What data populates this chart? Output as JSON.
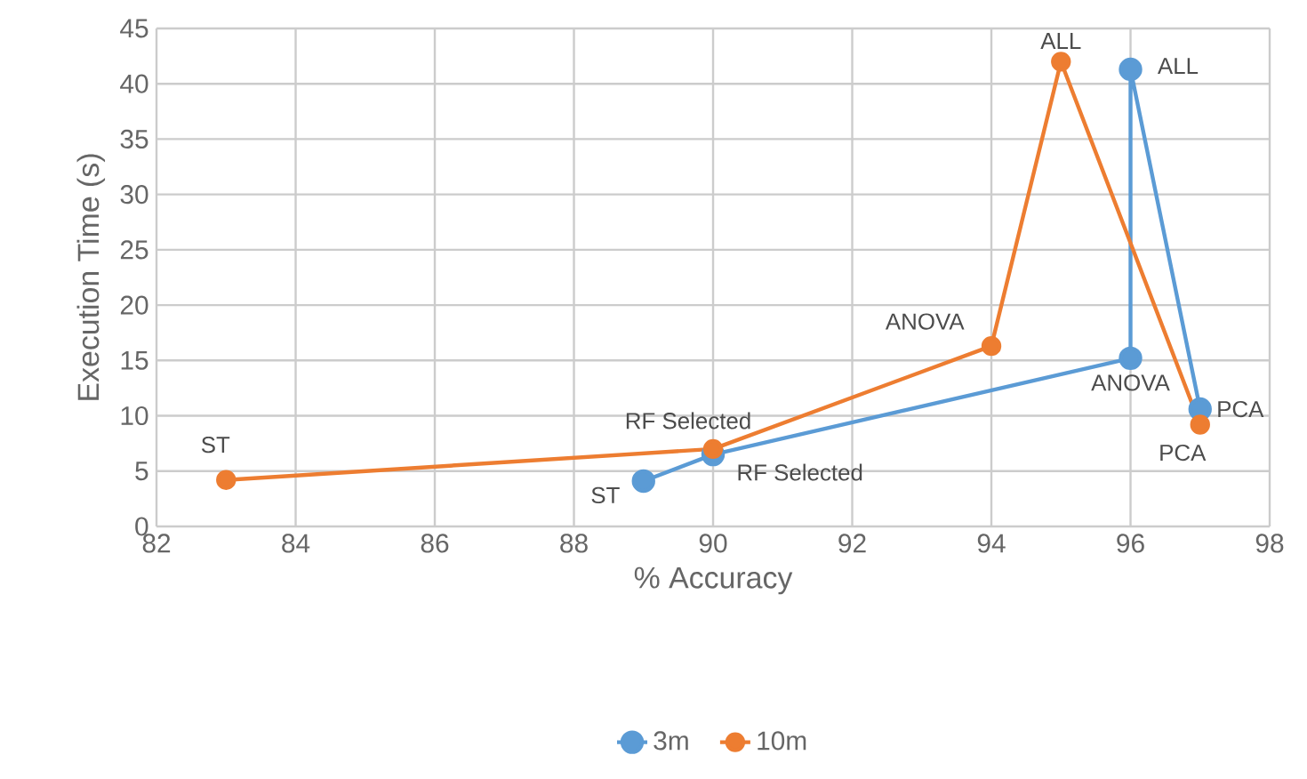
{
  "chart_data": {
    "type": "line",
    "xlabel": "% Accuracy",
    "ylabel": "Execution Time (s)",
    "xlim": [
      82,
      98
    ],
    "xticks": [
      82,
      84,
      86,
      88,
      90,
      92,
      94,
      96,
      98
    ],
    "ylim": [
      0,
      45
    ],
    "yticks": [
      0,
      5,
      10,
      15,
      20,
      25,
      30,
      35,
      40,
      45
    ],
    "grid": true,
    "legend": "bottom",
    "marker": "circle",
    "series": [
      {
        "name": "3m",
        "color": "#5b9bd5",
        "x": [
          89,
          90,
          96,
          96,
          97
        ],
        "values": [
          4.1,
          6.5,
          15.2,
          41.3,
          10.6
        ]
      },
      {
        "name": "10m",
        "color": "#ed7d31",
        "x": [
          83,
          90,
          94,
          95,
          97
        ],
        "values": [
          4.2,
          7,
          16.3,
          42,
          9.2
        ]
      }
    ],
    "annotations": [
      {
        "text": "ST",
        "x": 89,
        "y": 4.1
      },
      {
        "text": "RF Selected",
        "x": 90,
        "y": 6.5
      },
      {
        "text": "ANOVA",
        "x": 96,
        "y": 15.2
      },
      {
        "text": "ALL",
        "x": 96,
        "y": 41.3
      },
      {
        "text": "PCA",
        "x": 97,
        "y": 10.6
      },
      {
        "text": "ST",
        "x": 83,
        "y": 4.2
      },
      {
        "text": "RF Selected",
        "x": 90,
        "y": 7
      },
      {
        "text": "ANOVA",
        "x": 94,
        "y": 16.3
      },
      {
        "text": "ALL",
        "x": 95,
        "y": 42
      },
      {
        "text": "PCA",
        "x": 97,
        "y": 9.2
      }
    ]
  }
}
